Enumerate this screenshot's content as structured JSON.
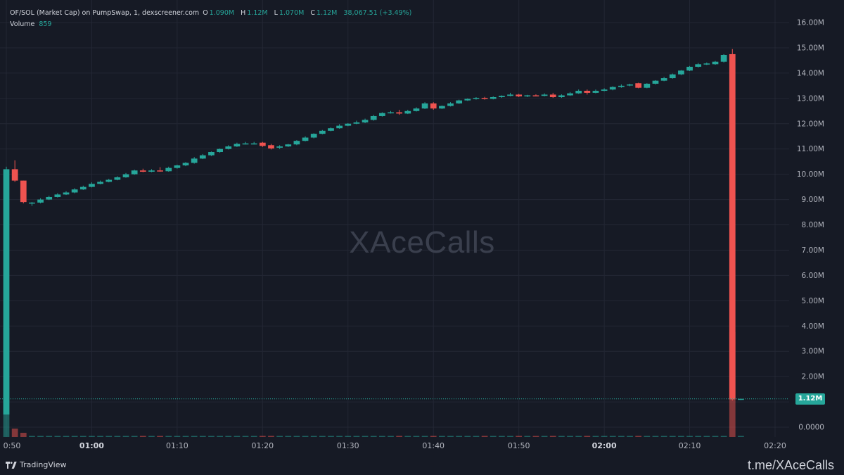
{
  "header": {
    "title": "OF/SOL (Market Cap) on PumpSwap, 1, dexscreener.com",
    "ohlc": [
      {
        "key": "O",
        "value": "1.090M"
      },
      {
        "key": "H",
        "value": "1.12M"
      },
      {
        "key": "L",
        "value": "1.070M"
      },
      {
        "key": "C",
        "value": "1.12M"
      }
    ],
    "change": "38,067.51 (+3.49%)",
    "volume_label": "Volume",
    "volume_value": "859"
  },
  "watermark": "XAceCalls",
  "current_price_label": "1.12M",
  "branding": "TradingView",
  "footer_handle": "t.me/XAceCalls",
  "colors": {
    "background": "#161a25",
    "grid": "#232734",
    "up": "#26a69a",
    "down": "#ef5350",
    "text": "#b2b5be"
  },
  "chart_data": {
    "type": "candlestick",
    "y_tick_labels": [
      "16.00M",
      "15.00M",
      "14.00M",
      "13.00M",
      "12.00M",
      "11.00M",
      "10.00M",
      "9.00M",
      "8.00M",
      "7.00M",
      "6.00M",
      "5.00M",
      "4.00M",
      "3.00M",
      "2.00M",
      "1.00M",
      "0.0000"
    ],
    "y_tick_values": [
      16,
      15,
      14,
      13,
      12,
      11,
      10,
      9,
      8,
      7,
      6,
      5,
      4,
      3,
      2,
      1,
      0
    ],
    "x_tick_labels": [
      "0:50",
      "01:00",
      "01:10",
      "01:20",
      "01:30",
      "01:40",
      "01:50",
      "02:00",
      "02:10",
      "02:20"
    ],
    "x_tick_minutes": [
      50,
      60,
      70,
      80,
      90,
      100,
      110,
      120,
      130,
      140
    ],
    "x_tick_bold": [
      false,
      true,
      false,
      false,
      false,
      false,
      false,
      true,
      false,
      false
    ],
    "y_unit": "M",
    "ylim": [
      -0.25,
      16.5
    ],
    "xlim": [
      49.9,
      144.2
    ],
    "current_price": 1.12,
    "candles": [
      {
        "t": 50,
        "o": 0.5,
        "h": 10.3,
        "l": 0.5,
        "c": 10.2,
        "v": 3.9
      },
      {
        "t": 51,
        "o": 10.2,
        "h": 10.55,
        "l": 9.7,
        "c": 9.75,
        "v": 0.3
      },
      {
        "t": 52,
        "o": 9.75,
        "h": 9.75,
        "l": 8.85,
        "c": 8.9,
        "v": 0.15
      },
      {
        "t": 53,
        "o": 8.85,
        "h": 8.9,
        "l": 8.75,
        "c": 8.88,
        "v": 0.03
      },
      {
        "t": 54,
        "o": 8.88,
        "h": 9.05,
        "l": 8.85,
        "c": 9.0,
        "v": 0.02
      },
      {
        "t": 55,
        "o": 9.0,
        "h": 9.15,
        "l": 8.98,
        "c": 9.1,
        "v": 0.02
      },
      {
        "t": 56,
        "o": 9.1,
        "h": 9.25,
        "l": 9.08,
        "c": 9.2,
        "v": 0.02
      },
      {
        "t": 57,
        "o": 9.2,
        "h": 9.33,
        "l": 9.18,
        "c": 9.28,
        "v": 0.02
      },
      {
        "t": 58,
        "o": 9.28,
        "h": 9.45,
        "l": 9.25,
        "c": 9.4,
        "v": 0.02
      },
      {
        "t": 59,
        "o": 9.4,
        "h": 9.55,
        "l": 9.38,
        "c": 9.5,
        "v": 0.02
      },
      {
        "t": 60,
        "o": 9.5,
        "h": 9.68,
        "l": 9.48,
        "c": 9.62,
        "v": 0.02
      },
      {
        "t": 61,
        "o": 9.62,
        "h": 9.75,
        "l": 9.6,
        "c": 9.7,
        "v": 0.02
      },
      {
        "t": 62,
        "o": 9.7,
        "h": 9.82,
        "l": 9.68,
        "c": 9.78,
        "v": 0.02
      },
      {
        "t": 63,
        "o": 9.78,
        "h": 9.92,
        "l": 9.76,
        "c": 9.88,
        "v": 0.02
      },
      {
        "t": 64,
        "o": 9.88,
        "h": 10.05,
        "l": 9.86,
        "c": 10.0,
        "v": 0.02
      },
      {
        "t": 65,
        "o": 10.0,
        "h": 10.18,
        "l": 9.98,
        "c": 10.15,
        "v": 0.02
      },
      {
        "t": 66,
        "o": 10.15,
        "h": 10.22,
        "l": 10.08,
        "c": 10.1,
        "v": 0.04
      },
      {
        "t": 67,
        "o": 10.1,
        "h": 10.2,
        "l": 10.08,
        "c": 10.15,
        "v": 0.02
      },
      {
        "t": 68,
        "o": 10.15,
        "h": 10.28,
        "l": 10.1,
        "c": 10.12,
        "v": 0.02
      },
      {
        "t": 69,
        "o": 10.12,
        "h": 10.3,
        "l": 10.1,
        "c": 10.25,
        "v": 0.02
      },
      {
        "t": 70,
        "o": 10.25,
        "h": 10.38,
        "l": 10.22,
        "c": 10.35,
        "v": 0.02
      },
      {
        "t": 71,
        "o": 10.35,
        "h": 10.48,
        "l": 10.32,
        "c": 10.45,
        "v": 0.02
      },
      {
        "t": 72,
        "o": 10.45,
        "h": 10.68,
        "l": 10.42,
        "c": 10.62,
        "v": 0.02
      },
      {
        "t": 73,
        "o": 10.62,
        "h": 10.8,
        "l": 10.6,
        "c": 10.75,
        "v": 0.02
      },
      {
        "t": 74,
        "o": 10.75,
        "h": 10.9,
        "l": 10.72,
        "c": 10.88,
        "v": 0.02
      },
      {
        "t": 75,
        "o": 10.88,
        "h": 11.02,
        "l": 10.85,
        "c": 11.0,
        "v": 0.02
      },
      {
        "t": 76,
        "o": 11.0,
        "h": 11.15,
        "l": 10.98,
        "c": 11.1,
        "v": 0.02
      },
      {
        "t": 77,
        "o": 11.1,
        "h": 11.25,
        "l": 11.08,
        "c": 11.2,
        "v": 0.02
      },
      {
        "t": 78,
        "o": 11.2,
        "h": 11.28,
        "l": 11.18,
        "c": 11.22,
        "v": 0.02
      },
      {
        "t": 79,
        "o": 11.22,
        "h": 11.28,
        "l": 11.18,
        "c": 11.22,
        "v": 0.02
      },
      {
        "t": 80,
        "o": 11.25,
        "h": 11.28,
        "l": 11.08,
        "c": 11.12,
        "v": 0.04
      },
      {
        "t": 81,
        "o": 11.15,
        "h": 11.2,
        "l": 10.98,
        "c": 11.02,
        "v": 0.04
      },
      {
        "t": 82,
        "o": 11.05,
        "h": 11.15,
        "l": 11.0,
        "c": 11.1,
        "v": 0.02
      },
      {
        "t": 83,
        "o": 11.1,
        "h": 11.2,
        "l": 11.08,
        "c": 11.18,
        "v": 0.02
      },
      {
        "t": 84,
        "o": 11.18,
        "h": 11.35,
        "l": 11.15,
        "c": 11.32,
        "v": 0.02
      },
      {
        "t": 85,
        "o": 11.32,
        "h": 11.5,
        "l": 11.3,
        "c": 11.45,
        "v": 0.02
      },
      {
        "t": 86,
        "o": 11.45,
        "h": 11.62,
        "l": 11.42,
        "c": 11.6,
        "v": 0.02
      },
      {
        "t": 87,
        "o": 11.6,
        "h": 11.75,
        "l": 11.58,
        "c": 11.72,
        "v": 0.02
      },
      {
        "t": 88,
        "o": 11.72,
        "h": 11.85,
        "l": 11.7,
        "c": 11.82,
        "v": 0.02
      },
      {
        "t": 89,
        "o": 11.82,
        "h": 11.98,
        "l": 11.8,
        "c": 11.92,
        "v": 0.02
      },
      {
        "t": 90,
        "o": 11.92,
        "h": 12.02,
        "l": 11.9,
        "c": 12.0,
        "v": 0.02
      },
      {
        "t": 91,
        "o": 12.0,
        "h": 12.12,
        "l": 11.98,
        "c": 12.05,
        "v": 0.02
      },
      {
        "t": 92,
        "o": 12.05,
        "h": 12.2,
        "l": 12.02,
        "c": 12.15,
        "v": 0.02
      },
      {
        "t": 93,
        "o": 12.15,
        "h": 12.35,
        "l": 12.12,
        "c": 12.3,
        "v": 0.02
      },
      {
        "t": 94,
        "o": 12.3,
        "h": 12.45,
        "l": 12.28,
        "c": 12.42,
        "v": 0.02
      },
      {
        "t": 95,
        "o": 12.42,
        "h": 12.5,
        "l": 12.4,
        "c": 12.45,
        "v": 0.02
      },
      {
        "t": 96,
        "o": 12.45,
        "h": 12.55,
        "l": 12.35,
        "c": 12.4,
        "v": 0.04
      },
      {
        "t": 97,
        "o": 12.4,
        "h": 12.55,
        "l": 12.38,
        "c": 12.5,
        "v": 0.02
      },
      {
        "t": 98,
        "o": 12.5,
        "h": 12.65,
        "l": 12.48,
        "c": 12.6,
        "v": 0.02
      },
      {
        "t": 99,
        "o": 12.6,
        "h": 12.85,
        "l": 12.58,
        "c": 12.8,
        "v": 0.02
      },
      {
        "t": 100,
        "o": 12.8,
        "h": 12.85,
        "l": 12.55,
        "c": 12.6,
        "v": 0.04
      },
      {
        "t": 101,
        "o": 12.6,
        "h": 12.72,
        "l": 12.58,
        "c": 12.7,
        "v": 0.02
      },
      {
        "t": 102,
        "o": 12.7,
        "h": 12.85,
        "l": 12.68,
        "c": 12.8,
        "v": 0.02
      },
      {
        "t": 103,
        "o": 12.8,
        "h": 12.95,
        "l": 12.78,
        "c": 12.92,
        "v": 0.02
      },
      {
        "t": 104,
        "o": 12.92,
        "h": 13.0,
        "l": 12.9,
        "c": 12.98,
        "v": 0.02
      },
      {
        "t": 105,
        "o": 12.98,
        "h": 13.05,
        "l": 12.95,
        "c": 13.02,
        "v": 0.02
      },
      {
        "t": 106,
        "o": 13.02,
        "h": 13.06,
        "l": 12.95,
        "c": 12.98,
        "v": 0.04
      },
      {
        "t": 107,
        "o": 12.98,
        "h": 13.08,
        "l": 12.96,
        "c": 13.05,
        "v": 0.02
      },
      {
        "t": 108,
        "o": 13.05,
        "h": 13.12,
        "l": 13.02,
        "c": 13.1,
        "v": 0.02
      },
      {
        "t": 109,
        "o": 13.1,
        "h": 13.22,
        "l": 13.08,
        "c": 13.15,
        "v": 0.02
      },
      {
        "t": 110,
        "o": 13.15,
        "h": 13.18,
        "l": 13.05,
        "c": 13.08,
        "v": 0.04
      },
      {
        "t": 111,
        "o": 13.08,
        "h": 13.14,
        "l": 13.05,
        "c": 13.12,
        "v": 0.02
      },
      {
        "t": 112,
        "o": 13.12,
        "h": 13.16,
        "l": 13.08,
        "c": 13.1,
        "v": 0.02
      },
      {
        "t": 113,
        "o": 13.1,
        "h": 13.2,
        "l": 13.08,
        "c": 13.15,
        "v": 0.02
      },
      {
        "t": 114,
        "o": 13.15,
        "h": 13.22,
        "l": 13.02,
        "c": 13.05,
        "v": 0.04
      },
      {
        "t": 115,
        "o": 13.05,
        "h": 13.16,
        "l": 13.02,
        "c": 13.12,
        "v": 0.02
      },
      {
        "t": 116,
        "o": 13.12,
        "h": 13.25,
        "l": 13.1,
        "c": 13.2,
        "v": 0.02
      },
      {
        "t": 117,
        "o": 13.2,
        "h": 13.35,
        "l": 13.18,
        "c": 13.3,
        "v": 0.02
      },
      {
        "t": 118,
        "o": 13.3,
        "h": 13.35,
        "l": 13.15,
        "c": 13.22,
        "v": 0.04
      },
      {
        "t": 119,
        "o": 13.22,
        "h": 13.35,
        "l": 13.2,
        "c": 13.3,
        "v": 0.02
      },
      {
        "t": 120,
        "o": 13.3,
        "h": 13.4,
        "l": 13.28,
        "c": 13.35,
        "v": 0.02
      },
      {
        "t": 121,
        "o": 13.35,
        "h": 13.48,
        "l": 13.32,
        "c": 13.45,
        "v": 0.02
      },
      {
        "t": 122,
        "o": 13.45,
        "h": 13.55,
        "l": 13.42,
        "c": 13.5,
        "v": 0.02
      },
      {
        "t": 123,
        "o": 13.52,
        "h": 13.58,
        "l": 13.48,
        "c": 13.55,
        "v": 0.02
      },
      {
        "t": 124,
        "o": 13.6,
        "h": 13.62,
        "l": 13.4,
        "c": 13.42,
        "v": 0.04
      },
      {
        "t": 125,
        "o": 13.42,
        "h": 13.6,
        "l": 13.4,
        "c": 13.58,
        "v": 0.02
      },
      {
        "t": 126,
        "o": 13.58,
        "h": 13.72,
        "l": 13.55,
        "c": 13.7,
        "v": 0.02
      },
      {
        "t": 127,
        "o": 13.7,
        "h": 13.85,
        "l": 13.68,
        "c": 13.8,
        "v": 0.02
      },
      {
        "t": 128,
        "o": 13.8,
        "h": 13.98,
        "l": 13.78,
        "c": 13.95,
        "v": 0.02
      },
      {
        "t": 129,
        "o": 13.95,
        "h": 14.12,
        "l": 13.92,
        "c": 14.1,
        "v": 0.02
      },
      {
        "t": 130,
        "o": 14.1,
        "h": 14.28,
        "l": 14.08,
        "c": 14.25,
        "v": 0.02
      },
      {
        "t": 131,
        "o": 14.25,
        "h": 14.4,
        "l": 14.22,
        "c": 14.35,
        "v": 0.02
      },
      {
        "t": 132,
        "o": 14.35,
        "h": 14.42,
        "l": 14.32,
        "c": 14.38,
        "v": 0.02
      },
      {
        "t": 133,
        "o": 14.35,
        "h": 14.48,
        "l": 14.33,
        "c": 14.45,
        "v": 0.02
      },
      {
        "t": 134,
        "o": 14.45,
        "h": 14.75,
        "l": 14.42,
        "c": 14.72,
        "v": 0.02
      },
      {
        "t": 135,
        "o": 14.75,
        "h": 14.95,
        "l": 1.05,
        "c": 1.1,
        "v": 3.75
      },
      {
        "t": 136,
        "o": 1.09,
        "h": 1.12,
        "l": 1.07,
        "c": 1.12,
        "v": 0.02
      }
    ]
  }
}
